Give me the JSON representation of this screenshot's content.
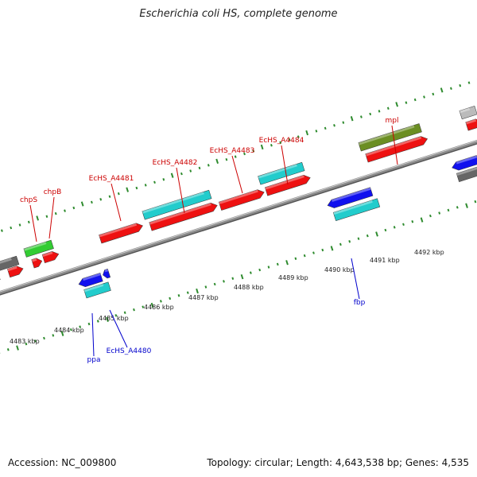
{
  "title": "Escherichia coli HS, complete genome",
  "footer": {
    "accession": "Accession: NC_009800",
    "summary": "Topology: circular; Length: 4,643,538 bp; Genes: 4,535"
  },
  "colors": {
    "backbone": "#8a8a8a",
    "tick": "#2e8b2e",
    "forward_label": "#cc0000",
    "reverse_label": "#0000cc",
    "cds": "#ee1111",
    "gene_cyan": "#22cccc",
    "gene_green": "#33cc33",
    "gene_olive": "#6b8e23",
    "gene_blue": "#1111ee",
    "gene_gray": "#666666",
    "gene_lightgray": "#bbbbbb"
  },
  "scale_labels": [
    "4483 kbp",
    "4484 kbp",
    "4485 kbp",
    "4486 kbp",
    "4487 kbp",
    "4488 kbp",
    "4489 kbp",
    "4490 kbp",
    "4491 kbp",
    "4492 kbp"
  ],
  "labels": {
    "forward": [
      "chpS",
      "chpB",
      "EcHS_A4481",
      "EcHS_A4482",
      "EcHS_A4483",
      "EcHS_A4484",
      "mpl"
    ],
    "reverse": [
      "ppa",
      "EcHS_A4480",
      "fbp"
    ]
  }
}
